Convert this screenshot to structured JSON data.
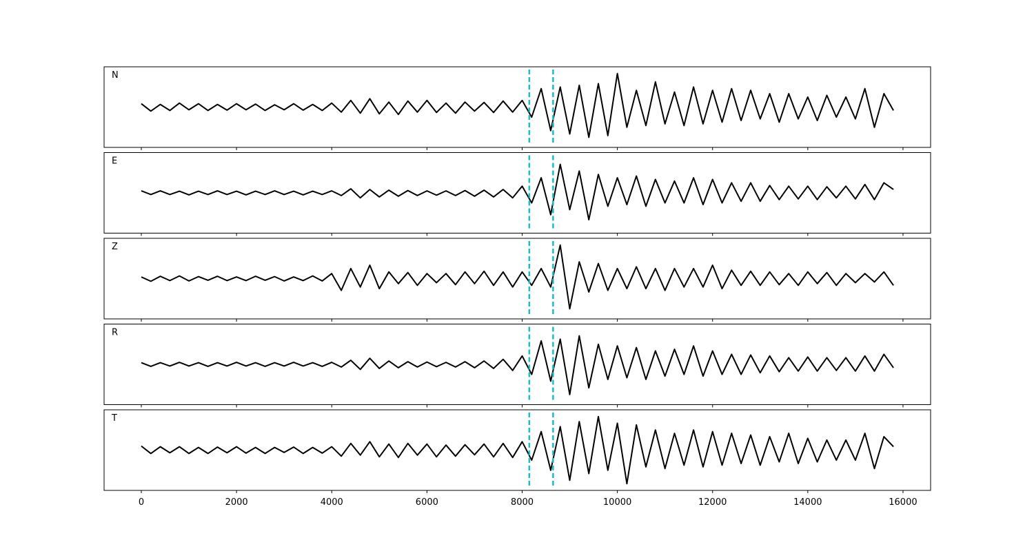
{
  "chart_data": {
    "type": "line",
    "x": [
      0,
      200,
      400,
      600,
      800,
      1000,
      1200,
      1400,
      1600,
      1800,
      2000,
      2200,
      2400,
      2600,
      2800,
      3000,
      3200,
      3400,
      3600,
      3800,
      4000,
      4200,
      4400,
      4600,
      4800,
      5000,
      5200,
      5400,
      5600,
      5800,
      6000,
      6200,
      6400,
      6600,
      6800,
      7000,
      7200,
      7400,
      7600,
      7800,
      8000,
      8200,
      8400,
      8600,
      8800,
      9000,
      9200,
      9400,
      9600,
      9800,
      10000,
      10200,
      10400,
      10600,
      10800,
      11000,
      11200,
      11400,
      11600,
      11800,
      12000,
      12200,
      12400,
      12600,
      12800,
      13000,
      13200,
      13400,
      13600,
      13800,
      14000,
      14200,
      14400,
      14600,
      14800,
      15000,
      15200,
      15400,
      15600,
      15800
    ],
    "series": [
      {
        "name": "N",
        "color": "#000000",
        "values": [
          0.1,
          -0.12,
          0.08,
          -0.1,
          0.12,
          -0.08,
          0.1,
          -0.1,
          0.08,
          -0.09,
          0.1,
          -0.08,
          0.09,
          -0.1,
          0.07,
          -0.08,
          0.1,
          -0.09,
          0.08,
          -0.1,
          0.12,
          -0.15,
          0.2,
          -0.18,
          0.25,
          -0.2,
          0.15,
          -0.22,
          0.18,
          -0.15,
          0.2,
          -0.16,
          0.12,
          -0.18,
          0.15,
          -0.12,
          0.14,
          -0.16,
          0.18,
          -0.15,
          0.2,
          -0.3,
          0.55,
          -0.7,
          0.6,
          -0.8,
          0.65,
          -0.9,
          0.7,
          -0.85,
          1.0,
          -0.6,
          0.5,
          -0.55,
          0.75,
          -0.5,
          0.45,
          -0.55,
          0.6,
          -0.5,
          0.5,
          -0.45,
          0.55,
          -0.4,
          0.5,
          -0.35,
          0.4,
          -0.45,
          0.4,
          -0.35,
          0.3,
          -0.4,
          0.35,
          -0.3,
          0.3,
          -0.35,
          0.55,
          -0.6,
          0.4,
          -0.1
        ]
      },
      {
        "name": "E",
        "color": "#000000",
        "values": [
          0.06,
          -0.05,
          0.06,
          -0.05,
          0.05,
          -0.06,
          0.05,
          -0.05,
          0.06,
          -0.05,
          0.05,
          -0.06,
          0.05,
          -0.05,
          0.06,
          -0.05,
          0.05,
          -0.06,
          0.05,
          -0.05,
          0.06,
          -0.08,
          0.12,
          -0.15,
          0.1,
          -0.12,
          0.08,
          -0.1,
          0.07,
          -0.08,
          0.06,
          -0.07,
          0.06,
          -0.08,
          0.07,
          -0.1,
          0.08,
          -0.12,
          0.1,
          -0.15,
          0.2,
          -0.3,
          0.45,
          -0.65,
          0.85,
          -0.5,
          0.65,
          -0.8,
          0.55,
          -0.4,
          0.45,
          -0.35,
          0.5,
          -0.4,
          0.4,
          -0.3,
          0.35,
          -0.3,
          0.45,
          -0.35,
          0.4,
          -0.3,
          0.3,
          -0.25,
          0.3,
          -0.25,
          0.22,
          -0.2,
          0.2,
          -0.18,
          0.2,
          -0.2,
          0.18,
          -0.15,
          0.2,
          -0.18,
          0.25,
          -0.2,
          0.3,
          0.1
        ]
      },
      {
        "name": "Z",
        "color": "#000000",
        "values": [
          0.05,
          -0.08,
          0.07,
          -0.06,
          0.08,
          -0.07,
          0.06,
          -0.05,
          0.07,
          -0.06,
          0.05,
          -0.06,
          0.07,
          -0.05,
          0.06,
          -0.07,
          0.05,
          -0.06,
          0.08,
          -0.07,
          0.15,
          -0.35,
          0.3,
          -0.25,
          0.4,
          -0.3,
          0.2,
          -0.15,
          0.18,
          -0.2,
          0.15,
          -0.12,
          0.15,
          -0.18,
          0.2,
          -0.15,
          0.22,
          -0.2,
          0.2,
          -0.25,
          0.2,
          -0.2,
          0.3,
          -0.25,
          1.0,
          -0.9,
          0.5,
          -0.4,
          0.45,
          -0.35,
          0.3,
          -0.3,
          0.35,
          -0.3,
          0.3,
          -0.35,
          0.3,
          -0.25,
          0.3,
          -0.25,
          0.4,
          -0.3,
          0.25,
          -0.2,
          0.22,
          -0.2,
          0.2,
          -0.18,
          0.15,
          -0.2,
          0.2,
          -0.15,
          0.18,
          -0.2,
          0.15,
          -0.12,
          0.15,
          -0.1,
          0.2,
          -0.2
        ]
      },
      {
        "name": "R",
        "color": "#000000",
        "values": [
          0.05,
          -0.06,
          0.05,
          -0.05,
          0.06,
          -0.05,
          0.05,
          -0.06,
          0.05,
          -0.05,
          0.06,
          -0.05,
          0.05,
          -0.06,
          0.05,
          -0.05,
          0.06,
          -0.05,
          0.05,
          -0.06,
          0.06,
          -0.08,
          0.12,
          -0.15,
          0.18,
          -0.12,
          0.1,
          -0.1,
          0.08,
          -0.08,
          0.07,
          -0.07,
          0.06,
          -0.08,
          0.08,
          -0.1,
          0.1,
          -0.12,
          0.15,
          -0.18,
          0.25,
          -0.3,
          0.7,
          -0.5,
          0.75,
          -0.9,
          0.85,
          -0.7,
          0.6,
          -0.45,
          0.55,
          -0.4,
          0.5,
          -0.45,
          0.4,
          -0.35,
          0.45,
          -0.3,
          0.55,
          -0.35,
          0.4,
          -0.3,
          0.3,
          -0.3,
          0.28,
          -0.25,
          0.25,
          -0.22,
          0.2,
          -0.2,
          0.22,
          -0.2,
          0.2,
          -0.18,
          0.2,
          -0.2,
          0.25,
          -0.2,
          0.3,
          -0.1
        ]
      },
      {
        "name": "T",
        "color": "#000000",
        "values": [
          0.12,
          -0.1,
          0.1,
          -0.08,
          0.1,
          -0.1,
          0.08,
          -0.1,
          0.09,
          -0.08,
          0.1,
          -0.09,
          0.08,
          -0.1,
          0.08,
          -0.07,
          0.09,
          -0.1,
          0.08,
          -0.09,
          0.1,
          -0.18,
          0.2,
          -0.15,
          0.25,
          -0.2,
          0.18,
          -0.22,
          0.2,
          -0.15,
          0.18,
          -0.2,
          0.15,
          -0.18,
          0.16,
          -0.14,
          0.18,
          -0.2,
          0.2,
          -0.22,
          0.25,
          -0.3,
          0.55,
          -0.6,
          0.7,
          -0.9,
          0.85,
          -0.7,
          1.0,
          -0.6,
          0.8,
          -1.0,
          0.75,
          -0.5,
          0.6,
          -0.55,
          0.5,
          -0.45,
          0.6,
          -0.5,
          0.55,
          -0.45,
          0.5,
          -0.4,
          0.45,
          -0.45,
          0.4,
          -0.35,
          0.5,
          -0.4,
          0.35,
          -0.35,
          0.3,
          -0.3,
          0.3,
          -0.3,
          0.5,
          -0.55,
          0.4,
          0.1
        ]
      }
    ],
    "markers": [
      8150,
      8650
    ],
    "marker_color": "#17becf",
    "xlim": [
      -782,
      16580
    ],
    "xticks": [
      0,
      2000,
      4000,
      6000,
      8000,
      10000,
      12000,
      14000,
      16000
    ],
    "ylim": [
      -1.2,
      1.2
    ],
    "grid": false
  }
}
